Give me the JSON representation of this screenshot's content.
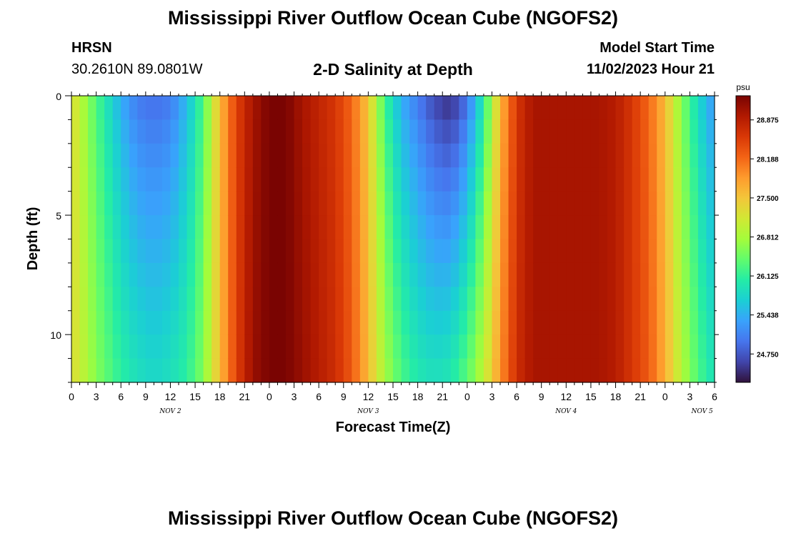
{
  "header": {
    "title": "Mississippi River Outflow Ocean Cube (NGOFS2)",
    "station": "HRSN",
    "coordinates": "30.2610N  89.0801W",
    "subtitle": "2-D Salinity at Depth",
    "model_start_label": "Model Start Time",
    "model_start_time": "11/02/2023 Hour 21"
  },
  "footer": {
    "title": "Mississippi River Outflow Ocean Cube (NGOFS2)"
  },
  "colors": {
    "scale": [
      "#30123b",
      "#4145ab",
      "#4675ed",
      "#39a2fc",
      "#1bcfd4",
      "#24eca6",
      "#61fc6c",
      "#a4fc3b",
      "#d1e834",
      "#f3c63a",
      "#fe9b2d",
      "#f36315",
      "#d93806",
      "#b11901",
      "#7a0402"
    ]
  },
  "chart_data": {
    "type": "heatmap",
    "xlabel": "Forecast Time(Z)",
    "ylabel": "Depth (ft)",
    "colorbar_unit": "psu",
    "colorbar_ticks": [
      28.875,
      28.188,
      27.5,
      26.812,
      26.125,
      25.438,
      24.75
    ],
    "colorbar_tick_labels": [
      "28.875",
      "28.188",
      "27.500",
      "26.812",
      "26.125",
      "25.438",
      "24.750"
    ],
    "colorbar_range": [
      24.25,
      29.3
    ],
    "x_hours_range": [
      0,
      78
    ],
    "x_tick_labels": [
      "0",
      "3",
      "6",
      "9",
      "12",
      "15",
      "18",
      "21",
      "0",
      "3",
      "6",
      "9",
      "12",
      "15",
      "18",
      "21",
      "0",
      "3",
      "6",
      "9",
      "12",
      "15",
      "18",
      "21",
      "0",
      "3",
      "6"
    ],
    "date_labels": [
      {
        "label": "NOV 2",
        "hour": 12
      },
      {
        "label": "NOV 3",
        "hour": 36
      },
      {
        "label": "NOV 4",
        "hour": 60
      },
      {
        "label": "NOV 5",
        "hour": 76.5
      }
    ],
    "depth_range": [
      0,
      12
    ],
    "y_tick_labels": [
      "0",
      "5",
      "10"
    ],
    "y_tick_values": [
      0,
      5,
      10
    ],
    "depth_levels": [
      0,
      1,
      2,
      3,
      4,
      5,
      6,
      7,
      8,
      9,
      10,
      11,
      12
    ],
    "time_profile": {
      "hours": [
        0,
        3,
        6,
        8,
        10,
        12,
        14,
        16,
        18,
        20,
        22,
        24,
        26,
        28,
        30,
        32,
        34,
        36,
        38,
        40,
        42,
        44,
        46,
        48,
        50,
        52,
        54,
        56,
        58,
        60,
        62,
        64,
        66,
        68,
        70,
        72,
        74,
        76,
        78
      ],
      "surface": [
        27.3,
        26.3,
        25.4,
        25.0,
        24.9,
        25.0,
        25.5,
        26.3,
        27.6,
        28.5,
        29.0,
        29.3,
        29.3,
        29.0,
        28.8,
        28.6,
        28.2,
        27.5,
        26.2,
        25.4,
        25.0,
        24.6,
        24.4,
        24.9,
        26.0,
        27.6,
        28.6,
        29.0,
        29.0,
        29.0,
        29.0,
        29.0,
        28.9,
        28.6,
        28.2,
        27.6,
        26.6,
        25.8,
        25.2
      ],
      "bottom": [
        27.3,
        26.6,
        26.1,
        25.9,
        25.8,
        25.9,
        26.1,
        26.6,
        27.6,
        28.5,
        29.1,
        29.3,
        29.3,
        29.1,
        28.9,
        28.7,
        28.3,
        27.6,
        26.8,
        26.3,
        26.0,
        25.9,
        26.0,
        26.4,
        27.0,
        27.9,
        28.7,
        29.0,
        29.0,
        29.0,
        29.0,
        29.0,
        28.9,
        28.6,
        28.3,
        27.7,
        26.9,
        26.3,
        25.9
      ]
    }
  }
}
